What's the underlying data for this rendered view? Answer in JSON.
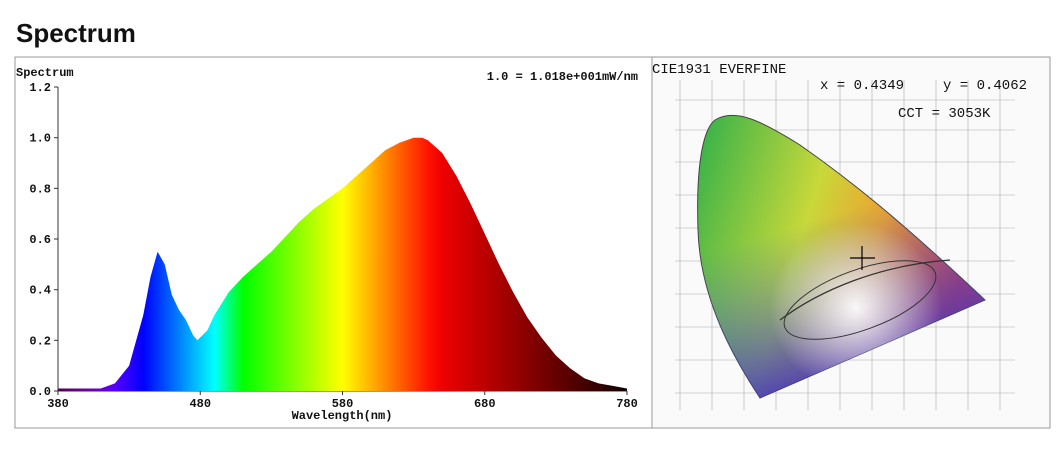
{
  "header": {
    "title": "Spectrum"
  },
  "chart_data": {
    "type": "area",
    "title": "Spectrum",
    "annotation": "1.0 = 1.018e+001mW/nm",
    "x_label": "Wavelength(nm)",
    "x": [
      380,
      390,
      400,
      410,
      420,
      430,
      440,
      445,
      450,
      455,
      460,
      465,
      470,
      475,
      478,
      485,
      490,
      500,
      510,
      520,
      530,
      540,
      550,
      560,
      570,
      580,
      590,
      600,
      610,
      620,
      630,
      636,
      640,
      650,
      660,
      670,
      680,
      690,
      700,
      710,
      720,
      730,
      740,
      750,
      760,
      770,
      780
    ],
    "values": [
      0.01,
      0.01,
      0.01,
      0.01,
      0.03,
      0.1,
      0.3,
      0.45,
      0.55,
      0.5,
      0.38,
      0.32,
      0.28,
      0.22,
      0.2,
      0.24,
      0.3,
      0.39,
      0.45,
      0.5,
      0.55,
      0.61,
      0.67,
      0.72,
      0.76,
      0.8,
      0.85,
      0.9,
      0.95,
      0.98,
      1.0,
      1.0,
      0.99,
      0.94,
      0.85,
      0.74,
      0.62,
      0.5,
      0.39,
      0.29,
      0.21,
      0.14,
      0.09,
      0.05,
      0.03,
      0.02,
      0.01
    ],
    "xlim": [
      380,
      780
    ],
    "xticks": [
      380,
      480,
      580,
      680,
      780
    ],
    "ylim": [
      0,
      1.2
    ],
    "yticks": [
      {
        "value": 0,
        "label": "0.0"
      },
      0.2,
      0.4,
      0.6,
      0.8,
      {
        "value": 1,
        "label": "1.0"
      },
      1.2
    ]
  },
  "cie": {
    "title": "CIE1931 EVERFINE",
    "x_coord": "x = 0.4349",
    "y_coord": "y = 0.4062",
    "cct": "CCT = 3053K"
  }
}
